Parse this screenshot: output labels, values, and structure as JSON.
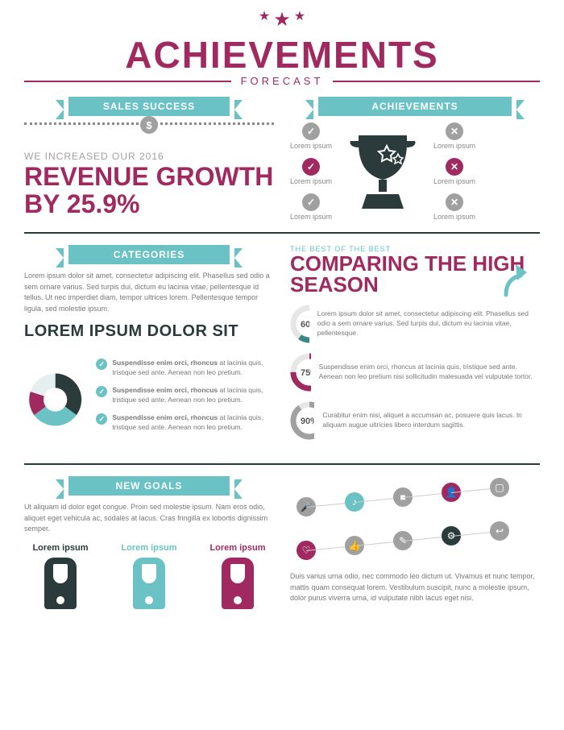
{
  "colors": {
    "magenta": "#a02a5f",
    "teal": "#6ac2c4",
    "teal_dark": "#3a8688",
    "dark": "#2b3a3a",
    "gray": "#a0a0a0",
    "light_gray": "#888888",
    "bg": "#ffffff",
    "pie_light": "#e6efef"
  },
  "header": {
    "title": "ACHIEVEMENTS",
    "subtitle": "FORECAST"
  },
  "section1": {
    "left": {
      "banner": "SALES SUCCESS",
      "intro": "WE INCREASED OUR 2016",
      "headline": "REVENUE GROWTH BY 25.9%"
    },
    "right": {
      "banner": "ACHIEVEMENTS",
      "items_left": [
        {
          "label": "Lorem ipsum",
          "type": "check",
          "color": "#a0a0a0"
        },
        {
          "label": "Lorem ipsum",
          "type": "check",
          "color": "#a02a5f"
        },
        {
          "label": "Lorem ipsum",
          "type": "check",
          "color": "#a0a0a0"
        }
      ],
      "items_right": [
        {
          "label": "Lorem ipsum",
          "type": "cross",
          "color": "#a0a0a0"
        },
        {
          "label": "Lorem ipsum",
          "type": "cross",
          "color": "#a02a5f"
        },
        {
          "label": "Lorem ipsum",
          "type": "cross",
          "color": "#a0a0a0"
        }
      ]
    }
  },
  "section2": {
    "left": {
      "banner": "CATEGORIES",
      "body": "Lorem ipsum dolor sit amet, consectetur adipiscing elit. Phasellus sed odio a sem ornare varius. Sed turpis dui, dictum eu lacinia vitae, pellentesque id tellus. Ut nec imperdiet diam, tempor ultrices lorem. Pellentesque tempor ligula, sed molestie ipsum.",
      "title": "LOREM IPSUM DOLOR SIT",
      "donut": {
        "slices": [
          {
            "color": "#2b3a3a",
            "pct": 35
          },
          {
            "color": "#6ac2c4",
            "pct": 30
          },
          {
            "color": "#a02a5f",
            "pct": 15
          },
          {
            "color": "#e6efef",
            "pct": 20
          }
        ],
        "inner_ratio": 0.45
      },
      "bullets": [
        {
          "bold": "Suspendisse enim orci, rhoncus",
          "text": " at lacinia quis, tristique sed ante. Aenean non leo pretium."
        },
        {
          "bold": "Suspendisse enim orci, rhoncus",
          "text": " at lacinia quis, tristique sed ante. Aenean non leo pretium."
        },
        {
          "bold": "Suspendisse enim orci, rhoncus",
          "text": " at lacinia quis, tristique sed ante. Aenean non leo pretium."
        }
      ]
    },
    "right": {
      "overline": "THE BEST OF THE BEST",
      "title": "COMPARING THE HIGH SEASON",
      "rings": [
        {
          "pct": 60,
          "color": "#3a8688",
          "label": "60%",
          "text": "Lorem ipsum dolor sit amet, consectetur adipiscing elit. Phasellus sed odio a sem ornare varius. Sed turpis dui, dictum eu lacinia vitae, pellentesque."
        },
        {
          "pct": 75,
          "color": "#a02a5f",
          "label": "75%",
          "text": "Suspendisse enim orci, rhoncus at lacinia quis, tristique sed ante. Aenean non leo pretium nisi sollicitudin malesuada vel vulputate tortor."
        },
        {
          "pct": 90,
          "color": "#a0a0a0",
          "label": "90%",
          "text": "Curabitur enim nisi, aliquet a accumsan ac, posuere quis lacus. In aliquam augue ultricies libero interdum sagittis."
        }
      ]
    }
  },
  "section3": {
    "banner": "NEW GOALS",
    "body": "Ut aliquam id dolor eget congue. Proin sed molestie ipsum. Nam eros odio, aliquet eget vehicula ac, sodales at lacus. Cras fringilla ex lobortis dignissim semper.",
    "goals": [
      {
        "label": "Lorem ipsum",
        "color": "#2b3a3a"
      },
      {
        "label": "Lorem ipsum",
        "color": "#6ac2c4"
      },
      {
        "label": "Lorem ipsum",
        "color": "#a02a5f"
      }
    ],
    "icons_top": [
      {
        "glyph": "🎤",
        "color": "#a0a0a0"
      },
      {
        "glyph": "♪",
        "color": "#6ac2c4"
      },
      {
        "glyph": "■",
        "color": "#a0a0a0"
      },
      {
        "glyph": "👤",
        "color": "#a02a5f"
      },
      {
        "glyph": "▢",
        "color": "#a0a0a0"
      }
    ],
    "icons_bottom": [
      {
        "glyph": "♡",
        "color": "#a02a5f"
      },
      {
        "glyph": "👍",
        "color": "#a0a0a0"
      },
      {
        "glyph": "✎",
        "color": "#a0a0a0"
      },
      {
        "glyph": "⚙",
        "color": "#2b3a3a"
      },
      {
        "glyph": "↩",
        "color": "#a0a0a0"
      }
    ],
    "footer_text": "Duis varius urna odio, nec commodo leo dictum ut. Vivamus et nunc tempor, mattis quam consequat lorem. Vestibulum suscipit, nunc a molestie ipsum, dolor purus viverra urna, id vulputate nibh lacus eget nisi."
  }
}
